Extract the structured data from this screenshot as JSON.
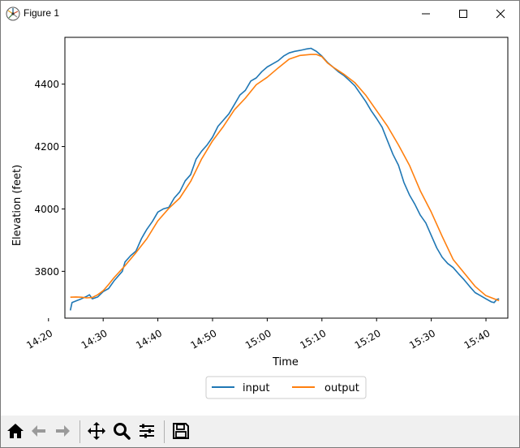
{
  "window": {
    "title": "Figure 1"
  },
  "toolbar": {
    "buttons": [
      {
        "icon": "home-icon"
      },
      {
        "icon": "back-arrow-icon"
      },
      {
        "icon": "forward-arrow-icon"
      },
      {
        "icon": "pan-move-icon"
      },
      {
        "icon": "zoom-magnifier-icon"
      },
      {
        "icon": "configure-subplots-icon"
      },
      {
        "icon": "save-floppy-icon"
      }
    ]
  },
  "chart_data": {
    "type": "line",
    "title": "",
    "xlabel": "Time",
    "ylabel": "Elevation (feet)",
    "xlim": [
      863,
      944
    ],
    "ylim": [
      3650,
      4550
    ],
    "x_ticks": [
      {
        "value": 860,
        "label": "14:20"
      },
      {
        "value": 870,
        "label": "14:30"
      },
      {
        "value": 880,
        "label": "14:40"
      },
      {
        "value": 890,
        "label": "14:50"
      },
      {
        "value": 900,
        "label": "15:00"
      },
      {
        "value": 910,
        "label": "15:10"
      },
      {
        "value": 920,
        "label": "15:20"
      },
      {
        "value": 930,
        "label": "15:30"
      },
      {
        "value": 940,
        "label": "15:40"
      }
    ],
    "y_ticks": [
      3800,
      4000,
      4200,
      4400
    ],
    "grid": false,
    "legend": {
      "placement": "bottom-center, outside plot",
      "columns": 2
    },
    "series": [
      {
        "name": "input",
        "color": "#1f77b4",
        "x": [
          864.0,
          864.3,
          865.0,
          866.0,
          867.0,
          867.5,
          868.0,
          869.0,
          870.0,
          871.0,
          872.0,
          873.0,
          873.5,
          874.0,
          875.0,
          876.0,
          877.0,
          877.5,
          878.0,
          879.0,
          880.0,
          881.0,
          882.0,
          883.0,
          884.0,
          885.0,
          886.0,
          887.0,
          888.0,
          889.0,
          890.0,
          891.0,
          892.0,
          893.0,
          894.0,
          895.0,
          896.0,
          897.0,
          898.0,
          899.0,
          900.0,
          901.0,
          902.0,
          903.0,
          904.0,
          905.0,
          906.0,
          907.0,
          908.0,
          909.0,
          910.0,
          911.0,
          912.0,
          913.0,
          914.0,
          915.0,
          916.0,
          917.0,
          918.0,
          919.0,
          920.0,
          921.0,
          922.0,
          923.0,
          924.0,
          925.0,
          926.0,
          927.0,
          928.0,
          929.0,
          930.0,
          931.0,
          932.0,
          933.0,
          934.0,
          935.0,
          936.0,
          937.0,
          938.0,
          939.0,
          940.0,
          941.0,
          941.5,
          942.0,
          942.4
        ],
        "y": [
          3675,
          3700,
          3705,
          3712,
          3720,
          3725,
          3712,
          3718,
          3735,
          3745,
          3770,
          3790,
          3800,
          3830,
          3850,
          3865,
          3905,
          3920,
          3935,
          3960,
          3990,
          4000,
          4005,
          4035,
          4055,
          4090,
          4110,
          4160,
          4185,
          4205,
          4230,
          4265,
          4285,
          4305,
          4335,
          4365,
          4380,
          4410,
          4420,
          4440,
          4455,
          4465,
          4475,
          4490,
          4500,
          4505,
          4508,
          4512,
          4515,
          4505,
          4490,
          4470,
          4455,
          4440,
          4428,
          4412,
          4395,
          4370,
          4345,
          4315,
          4290,
          4262,
          4218,
          4175,
          4140,
          4085,
          4045,
          4015,
          3980,
          3955,
          3915,
          3875,
          3845,
          3825,
          3812,
          3792,
          3773,
          3752,
          3732,
          3722,
          3712,
          3702,
          3700,
          3710,
          3712
        ]
      },
      {
        "name": "output",
        "color": "#ff7f0e",
        "x": [
          864.0,
          865.0,
          866.0,
          867.0,
          868.0,
          869.0,
          870.0,
          871.0,
          872.0,
          874.0,
          876.0,
          878.0,
          880.0,
          882.0,
          884.0,
          886.0,
          888.0,
          890.0,
          892.0,
          894.0,
          896.0,
          898.0,
          900.0,
          902.0,
          904.0,
          906.0,
          908.0,
          909.0,
          910.0,
          911.0,
          912.0,
          914.0,
          916.0,
          918.0,
          920.0,
          922.0,
          924.0,
          926.0,
          928.0,
          930.0,
          932.0,
          934.0,
          936.0,
          938.0,
          940.0,
          942.4
        ],
        "y": [
          3717,
          3718,
          3717,
          3715,
          3716,
          3725,
          3738,
          3758,
          3780,
          3818,
          3860,
          3905,
          3962,
          4002,
          4035,
          4088,
          4160,
          4218,
          4265,
          4318,
          4355,
          4398,
          4422,
          4452,
          4480,
          4492,
          4495,
          4495,
          4488,
          4468,
          4455,
          4432,
          4405,
          4365,
          4315,
          4265,
          4205,
          4140,
          4058,
          3990,
          3912,
          3838,
          3795,
          3752,
          3722,
          3706
        ]
      }
    ]
  }
}
